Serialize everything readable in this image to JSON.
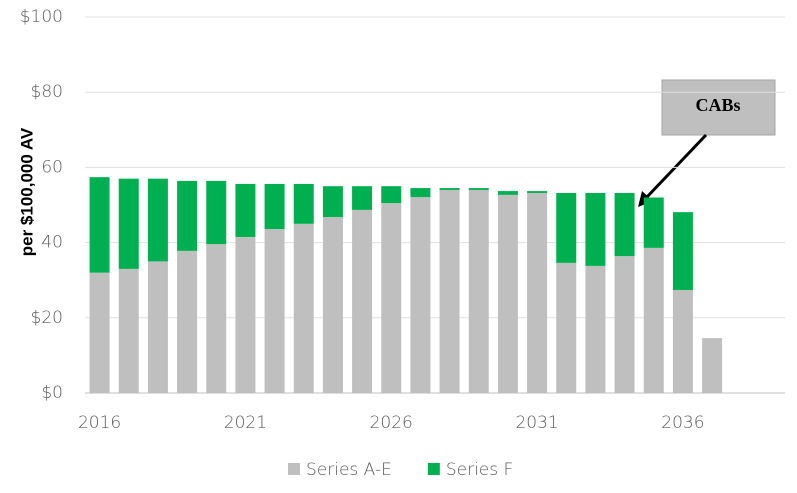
{
  "chart_data": {
    "type": "stacked_bar",
    "y_label": "per $100,000 AV",
    "annotation": "CABs",
    "categories": [
      "2016",
      null,
      null,
      null,
      null,
      "2021",
      null,
      null,
      null,
      null,
      "2026",
      null,
      null,
      null,
      null,
      "2031",
      null,
      null,
      null,
      null,
      "2036",
      null,
      null,
      null
    ],
    "series": [
      {
        "name": "Series A-E",
        "color": "#bfbfbf",
        "values": [
          32,
          33,
          35,
          37.8,
          39.6,
          41.5,
          43.6,
          45,
          46.8,
          48.7,
          50.5,
          52.1,
          54,
          54,
          52.7,
          53.2,
          34.6,
          33.8,
          36.4,
          38.6,
          27.4,
          14.6,
          null,
          null
        ]
      },
      {
        "name": "Series F",
        "color": "#00b050",
        "values": [
          25.4,
          24,
          22,
          18.6,
          16.8,
          14.1,
          12,
          10.6,
          8.2,
          6.3,
          4.5,
          2.4,
          0.5,
          0.5,
          1,
          0.5,
          18.6,
          19.4,
          16.8,
          13.4,
          20.7,
          0,
          null,
          null
        ]
      }
    ],
    "ylim": [
      0,
      100
    ],
    "yticks": [
      {
        "value": 0,
        "label": "$0"
      },
      {
        "value": 20,
        "label": "$20"
      },
      40,
      60,
      {
        "value": 80,
        "label": "$80"
      },
      {
        "value": 100,
        "label": "$100"
      }
    ],
    "grid": true,
    "legend": "bottom"
  }
}
